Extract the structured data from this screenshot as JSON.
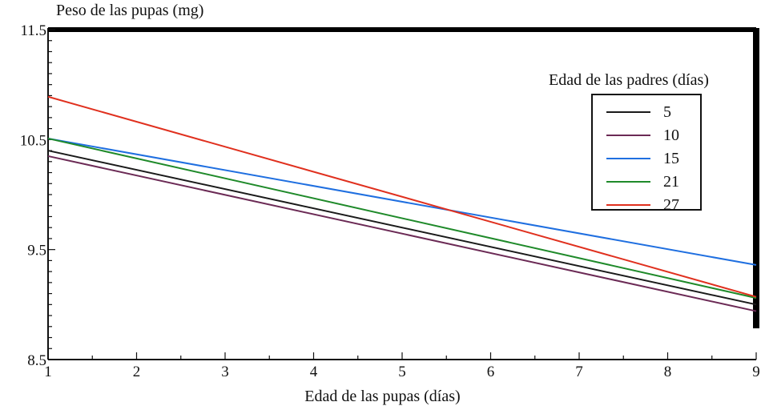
{
  "chart_data": {
    "type": "line",
    "title": "",
    "ylabel": "Peso de las pupas (mg)",
    "xlabel": "Edad de las pupas (días)",
    "xlim": [
      1,
      9
    ],
    "ylim": [
      8.5,
      11.5
    ],
    "x_ticks": [
      1,
      2,
      3,
      4,
      5,
      6,
      7,
      8,
      9
    ],
    "y_ticks": [
      8.5,
      9.5,
      10.5,
      11.5
    ],
    "y_tick_labels": [
      "8.5",
      "9.5",
      "10.5",
      "11.5"
    ],
    "grid": false,
    "legend_title": "Edad de las padres (días)",
    "legend_position": "top-right",
    "series": [
      {
        "name": "5",
        "color": "#1a1a1a",
        "x": [
          1,
          9
        ],
        "y": [
          10.4,
          9.0
        ]
      },
      {
        "name": "10",
        "color": "#6b2a55",
        "x": [
          1,
          9
        ],
        "y": [
          10.35,
          8.94
        ]
      },
      {
        "name": "15",
        "color": "#1f6fe0",
        "x": [
          1,
          9
        ],
        "y": [
          10.51,
          9.36
        ]
      },
      {
        "name": "21",
        "color": "#1f8a2a",
        "x": [
          1,
          9
        ],
        "y": [
          10.51,
          9.06
        ]
      },
      {
        "name": "27",
        "color": "#e0301e",
        "x": [
          1,
          9
        ],
        "y": [
          10.89,
          9.07
        ]
      }
    ]
  }
}
